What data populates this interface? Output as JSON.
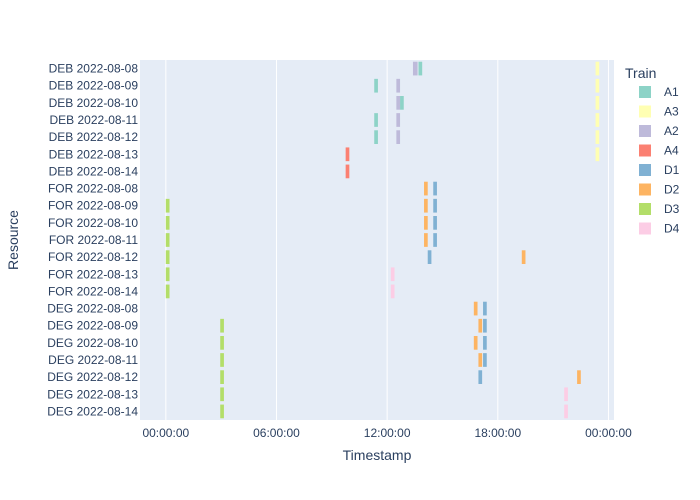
{
  "chart_data": {
    "type": "timeline",
    "xlabel": "Timestamp",
    "ylabel": "Resource",
    "x_ticks": [
      {
        "hour": 0,
        "label": "00:00:00"
      },
      {
        "hour": 6,
        "label": "06:00:00"
      },
      {
        "hour": 12,
        "label": "12:00:00"
      },
      {
        "hour": 18,
        "label": "18:00:00"
      },
      {
        "hour": 24,
        "label": "00:00:00"
      }
    ],
    "xlim_hours": [
      -1.4,
      24.3
    ],
    "grid": true,
    "legend_title": "Train",
    "legend_position": "right",
    "categories": [
      "DEB 2022-08-08",
      "DEB 2022-08-09",
      "DEB 2022-08-10",
      "DEB 2022-08-11",
      "DEB 2022-08-12",
      "DEB 2022-08-13",
      "DEB 2022-08-14",
      "FOR 2022-08-08",
      "FOR 2022-08-09",
      "FOR 2022-08-10",
      "FOR 2022-08-11",
      "FOR 2022-08-12",
      "FOR 2022-08-13",
      "FOR 2022-08-14",
      "DEG 2022-08-08",
      "DEG 2022-08-09",
      "DEG 2022-08-10",
      "DEG 2022-08-11",
      "DEG 2022-08-12",
      "DEG 2022-08-13",
      "DEG 2022-08-14"
    ],
    "series": [
      {
        "name": "A1",
        "color": "#8dd3c7",
        "tasks": [
          {
            "resource": "DEB 2022-08-08",
            "start": 13.7,
            "end": 13.9
          },
          {
            "resource": "DEB 2022-08-09",
            "start": 11.3,
            "end": 11.5
          },
          {
            "resource": "DEB 2022-08-10",
            "start": 12.7,
            "end": 12.9
          },
          {
            "resource": "DEB 2022-08-11",
            "start": 11.3,
            "end": 11.5
          },
          {
            "resource": "DEB 2022-08-12",
            "start": 11.3,
            "end": 11.5
          }
        ]
      },
      {
        "name": "A3",
        "color": "#ffffb3",
        "tasks": [
          {
            "resource": "DEB 2022-08-08",
            "start": 23.3,
            "end": 23.5
          },
          {
            "resource": "DEB 2022-08-09",
            "start": 23.3,
            "end": 23.5
          },
          {
            "resource": "DEB 2022-08-10",
            "start": 23.3,
            "end": 23.5
          },
          {
            "resource": "DEB 2022-08-11",
            "start": 23.3,
            "end": 23.5
          },
          {
            "resource": "DEB 2022-08-12",
            "start": 23.3,
            "end": 23.5
          },
          {
            "resource": "DEB 2022-08-13",
            "start": 23.3,
            "end": 23.5
          }
        ]
      },
      {
        "name": "A2",
        "color": "#bebada",
        "tasks": [
          {
            "resource": "DEB 2022-08-08",
            "start": 13.4,
            "end": 13.65
          },
          {
            "resource": "DEB 2022-08-09",
            "start": 12.5,
            "end": 12.7
          },
          {
            "resource": "DEB 2022-08-10",
            "start": 12.5,
            "end": 12.7
          },
          {
            "resource": "DEB 2022-08-11",
            "start": 12.5,
            "end": 12.7
          },
          {
            "resource": "DEB 2022-08-12",
            "start": 12.5,
            "end": 12.7
          }
        ]
      },
      {
        "name": "A4",
        "color": "#fb8072",
        "tasks": [
          {
            "resource": "DEB 2022-08-13",
            "start": 9.75,
            "end": 9.95
          },
          {
            "resource": "DEB 2022-08-14",
            "start": 9.75,
            "end": 9.95
          }
        ]
      },
      {
        "name": "D1",
        "color": "#80b1d3",
        "tasks": [
          {
            "resource": "FOR 2022-08-08",
            "start": 14.5,
            "end": 14.7
          },
          {
            "resource": "FOR 2022-08-09",
            "start": 14.5,
            "end": 14.7
          },
          {
            "resource": "FOR 2022-08-10",
            "start": 14.5,
            "end": 14.7
          },
          {
            "resource": "FOR 2022-08-11",
            "start": 14.5,
            "end": 14.7
          },
          {
            "resource": "FOR 2022-08-12",
            "start": 14.2,
            "end": 14.4
          },
          {
            "resource": "DEG 2022-08-08",
            "start": 17.2,
            "end": 17.4
          },
          {
            "resource": "DEG 2022-08-09",
            "start": 17.2,
            "end": 17.4
          },
          {
            "resource": "DEG 2022-08-10",
            "start": 17.2,
            "end": 17.4
          },
          {
            "resource": "DEG 2022-08-11",
            "start": 17.2,
            "end": 17.4
          },
          {
            "resource": "DEG 2022-08-12",
            "start": 16.95,
            "end": 17.15
          }
        ]
      },
      {
        "name": "D2",
        "color": "#fdb462",
        "tasks": [
          {
            "resource": "FOR 2022-08-08",
            "start": 14.0,
            "end": 14.2
          },
          {
            "resource": "FOR 2022-08-09",
            "start": 14.0,
            "end": 14.2
          },
          {
            "resource": "FOR 2022-08-10",
            "start": 14.0,
            "end": 14.2
          },
          {
            "resource": "FOR 2022-08-11",
            "start": 14.0,
            "end": 14.2
          },
          {
            "resource": "FOR 2022-08-12",
            "start": 19.3,
            "end": 19.5
          },
          {
            "resource": "DEG 2022-08-08",
            "start": 16.7,
            "end": 16.9
          },
          {
            "resource": "DEG 2022-08-09",
            "start": 16.95,
            "end": 17.15
          },
          {
            "resource": "DEG 2022-08-10",
            "start": 16.7,
            "end": 16.9
          },
          {
            "resource": "DEG 2022-08-11",
            "start": 16.95,
            "end": 17.15
          },
          {
            "resource": "DEG 2022-08-12",
            "start": 22.3,
            "end": 22.5
          }
        ]
      },
      {
        "name": "D3",
        "color": "#b3de69",
        "tasks": [
          {
            "resource": "FOR 2022-08-09",
            "start": 0.0,
            "end": 0.2
          },
          {
            "resource": "FOR 2022-08-10",
            "start": 0.0,
            "end": 0.2
          },
          {
            "resource": "FOR 2022-08-11",
            "start": 0.0,
            "end": 0.2
          },
          {
            "resource": "FOR 2022-08-12",
            "start": 0.0,
            "end": 0.2
          },
          {
            "resource": "FOR 2022-08-13",
            "start": 0.0,
            "end": 0.2
          },
          {
            "resource": "FOR 2022-08-14",
            "start": 0.0,
            "end": 0.2
          },
          {
            "resource": "DEG 2022-08-09",
            "start": 2.95,
            "end": 3.15
          },
          {
            "resource": "DEG 2022-08-10",
            "start": 2.95,
            "end": 3.15
          },
          {
            "resource": "DEG 2022-08-11",
            "start": 2.95,
            "end": 3.15
          },
          {
            "resource": "DEG 2022-08-12",
            "start": 2.95,
            "end": 3.15
          },
          {
            "resource": "DEG 2022-08-13",
            "start": 2.95,
            "end": 3.15
          },
          {
            "resource": "DEG 2022-08-14",
            "start": 2.95,
            "end": 3.15
          }
        ]
      },
      {
        "name": "D4",
        "color": "#fccde5",
        "tasks": [
          {
            "resource": "FOR 2022-08-13",
            "start": 12.2,
            "end": 12.4
          },
          {
            "resource": "FOR 2022-08-14",
            "start": 12.2,
            "end": 12.4
          },
          {
            "resource": "DEG 2022-08-13",
            "start": 21.6,
            "end": 21.8
          },
          {
            "resource": "DEG 2022-08-14",
            "start": 21.6,
            "end": 21.8
          }
        ]
      }
    ]
  }
}
